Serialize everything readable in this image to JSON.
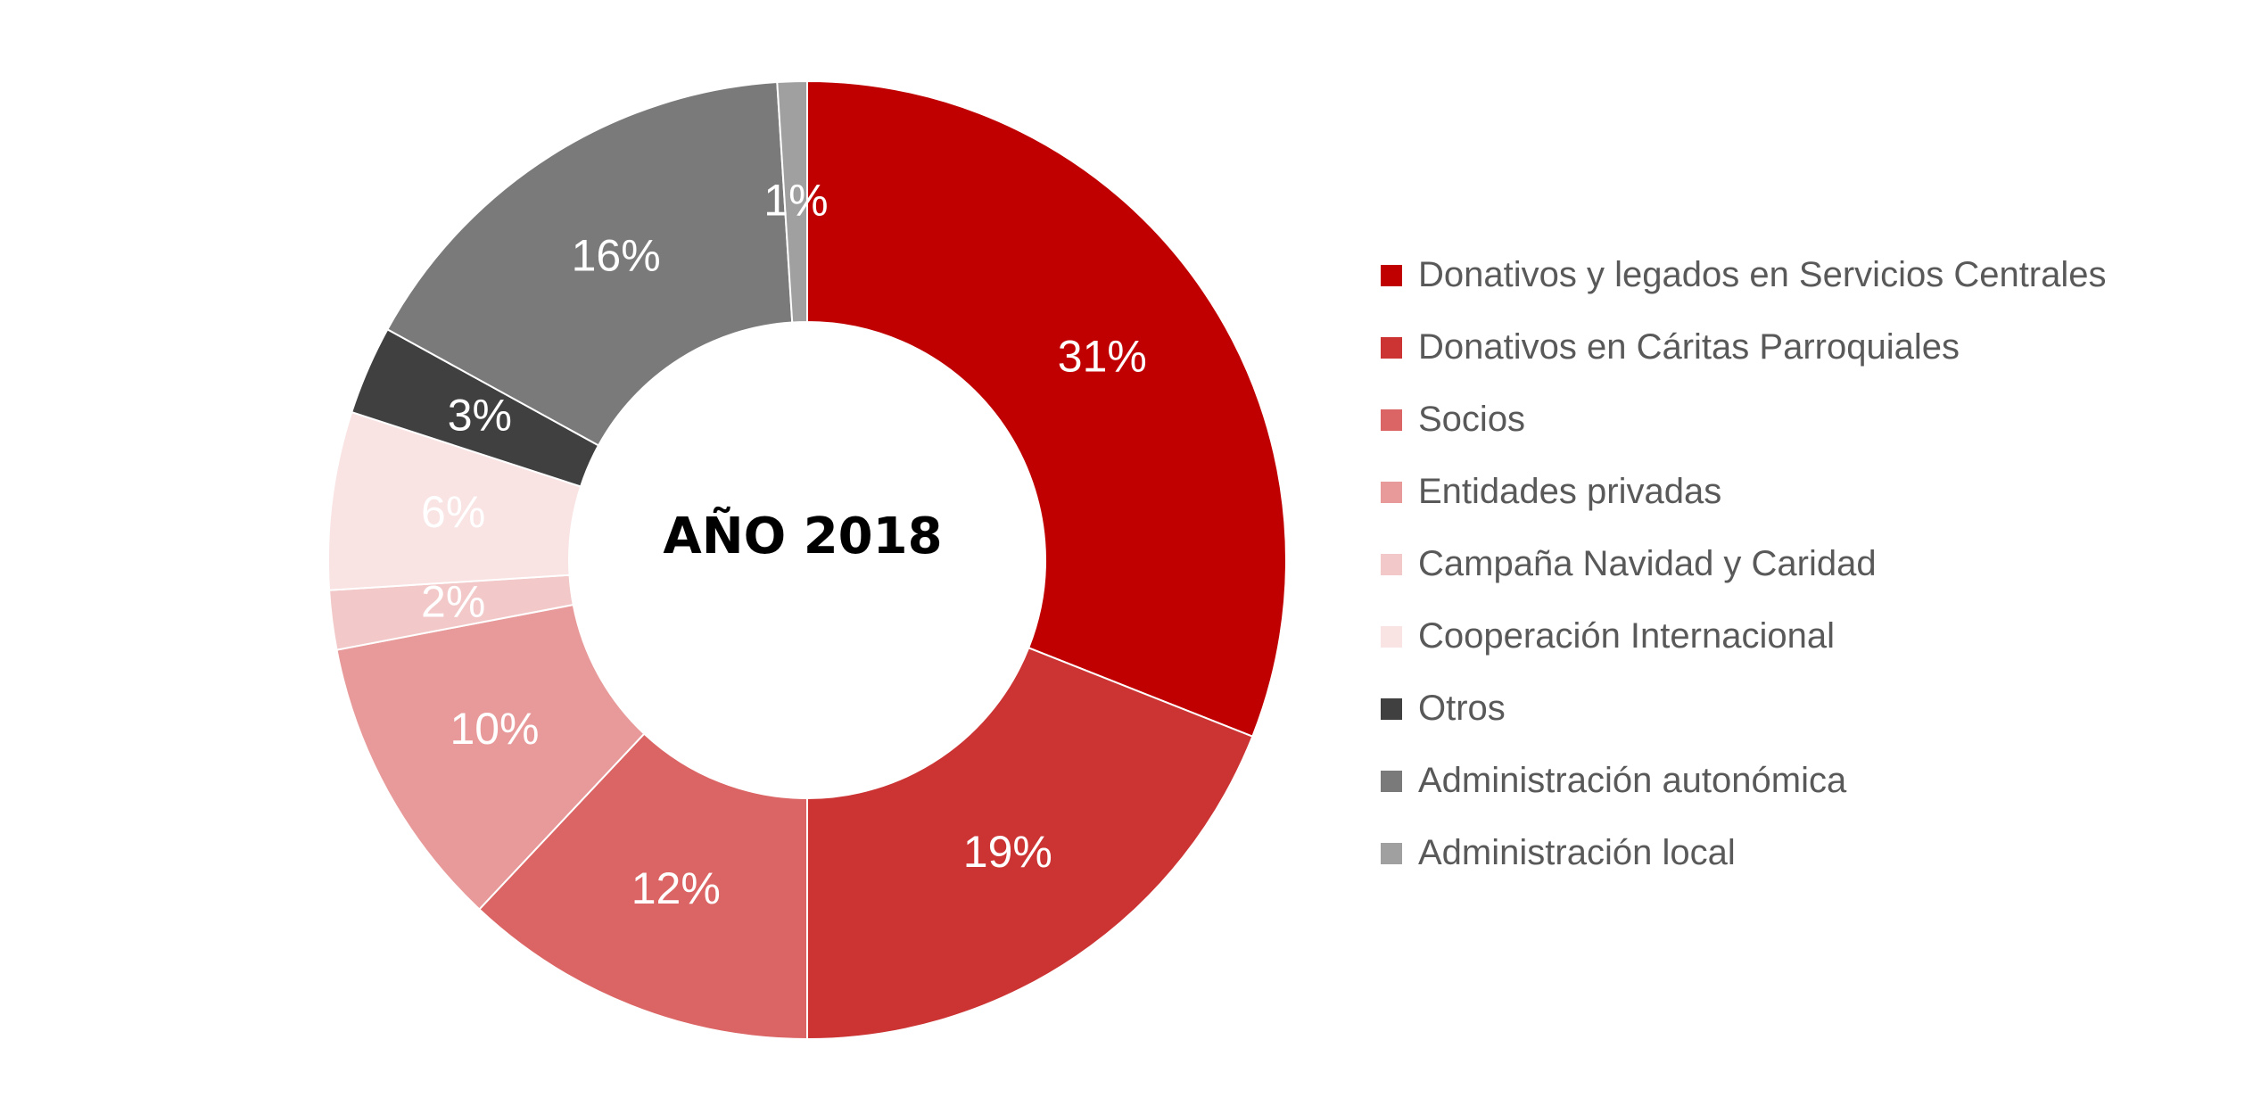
{
  "chart_data": {
    "type": "pie",
    "variant": "donut",
    "center_label": "AÑO 2018",
    "legend_position": "right",
    "categories": [
      "Donativos y legados en Servicios Centrales",
      "Donativos en Cáritas Parroquiales",
      "Socios",
      "Entidades privadas",
      "Campaña Navidad y Caridad",
      "Cooperación Internacional",
      "Otros",
      "Administración autonómica",
      "Administración local"
    ],
    "values": [
      31,
      19,
      12,
      10,
      2,
      6,
      3,
      16,
      1
    ],
    "data_labels": [
      "31%",
      "19%",
      "12%",
      "10%",
      "2%",
      "6%",
      "3%",
      "16%",
      "1%"
    ],
    "colors": [
      "#C00000",
      "#CC3333",
      "#DB6464",
      "#E89A9A",
      "#F2C8C8",
      "#F9E3E3",
      "#404040",
      "#7A7A7A",
      "#A0A0A0"
    ]
  }
}
